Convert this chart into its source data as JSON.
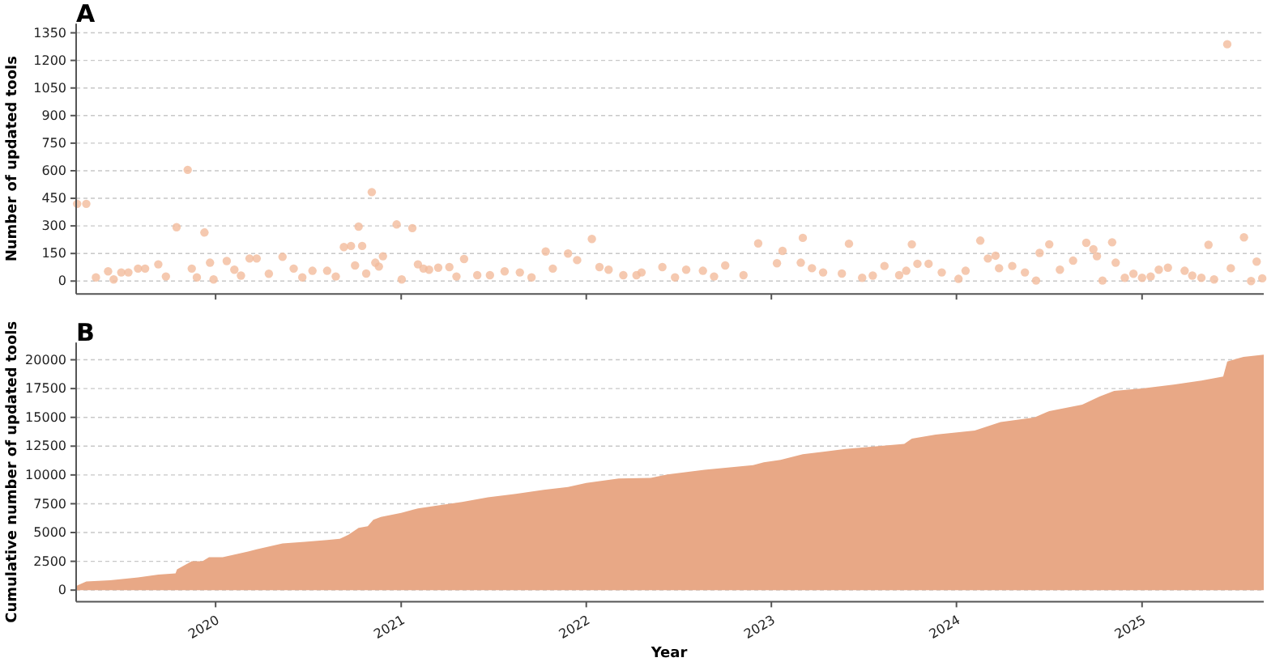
{
  "chart_data": [
    {
      "type": "scatter",
      "title": "A",
      "ylabel": "Number of updated tools",
      "color": "#f3bc9c",
      "marker": "circle",
      "grid": "y",
      "tick_labels": "y",
      "xlim": [
        "2019-04-01",
        "2025-08-29"
      ],
      "ylim": [
        -70,
        1400
      ],
      "xticks": [
        {
          "value": "2020-01-01",
          "label": null
        },
        {
          "value": "2021-01-01",
          "label": null
        },
        {
          "value": "2022-01-01",
          "label": null
        },
        {
          "value": "2023-01-01",
          "label": null
        },
        {
          "value": "2024-01-01",
          "label": null
        },
        {
          "value": "2025-01-01",
          "label": null
        }
      ],
      "yticks": [
        0,
        150,
        300,
        450,
        600,
        750,
        900,
        1050,
        1200,
        1350
      ],
      "x": [
        "2019-04-03",
        "2019-04-21",
        "2019-05-10",
        "2019-06-03",
        "2019-06-14",
        "2019-06-29",
        "2019-07-13",
        "2019-08-01",
        "2019-08-15",
        "2019-09-10",
        "2019-09-25",
        "2019-10-16",
        "2019-11-07",
        "2019-11-15",
        "2019-11-25",
        "2019-12-10",
        "2019-12-21",
        "2019-12-28",
        "2020-01-23",
        "2020-02-07",
        "2020-02-20",
        "2020-03-08",
        "2020-03-22",
        "2020-04-15",
        "2020-05-12",
        "2020-06-03",
        "2020-06-20",
        "2020-07-10",
        "2020-08-08",
        "2020-08-25",
        "2020-09-10",
        "2020-09-24",
        "2020-10-02",
        "2020-10-09",
        "2020-10-16",
        "2020-10-24",
        "2020-11-04",
        "2020-11-11",
        "2020-11-18",
        "2020-11-26",
        "2020-12-23",
        "2021-01-02",
        "2021-01-23",
        "2021-02-03",
        "2021-02-14",
        "2021-02-25",
        "2021-03-15",
        "2021-04-06",
        "2021-04-20",
        "2021-05-05",
        "2021-05-31",
        "2021-06-25",
        "2021-07-24",
        "2021-08-23",
        "2021-09-15",
        "2021-10-13",
        "2021-10-27",
        "2021-11-26",
        "2021-12-14",
        "2022-01-12",
        "2022-01-27",
        "2022-02-14",
        "2022-03-15",
        "2022-04-10",
        "2022-04-20",
        "2022-05-31",
        "2022-06-25",
        "2022-07-17",
        "2022-08-19",
        "2022-09-10",
        "2022-10-02",
        "2022-11-07",
        "2022-12-06",
        "2023-01-12",
        "2023-01-23",
        "2023-02-28",
        "2023-03-04",
        "2023-03-22",
        "2023-04-13",
        "2023-05-20",
        "2023-06-03",
        "2023-06-29",
        "2023-07-20",
        "2023-08-12",
        "2023-09-10",
        "2023-09-24",
        "2023-10-05",
        "2023-10-16",
        "2023-11-07",
        "2023-12-03",
        "2024-01-05",
        "2024-01-19",
        "2024-02-17",
        "2024-03-03",
        "2024-03-18",
        "2024-03-25",
        "2024-04-20",
        "2024-05-15",
        "2024-06-06",
        "2024-06-13",
        "2024-07-02",
        "2024-07-23",
        "2024-08-18",
        "2024-09-13",
        "2024-09-27",
        "2024-10-04",
        "2024-10-15",
        "2024-11-03",
        "2024-11-10",
        "2024-11-28",
        "2024-12-15",
        "2025-01-01",
        "2025-01-18",
        "2025-02-03",
        "2025-02-21",
        "2025-03-26",
        "2025-04-10",
        "2025-04-28",
        "2025-05-12",
        "2025-05-23",
        "2025-06-18",
        "2025-06-25",
        "2025-07-21",
        "2025-08-04",
        "2025-08-15",
        "2025-08-26"
      ],
      "values": [
        420,
        420,
        20,
        53,
        9,
        47,
        47,
        68,
        68,
        91,
        25,
        293,
        605,
        68,
        20,
        264,
        100,
        9,
        109,
        62,
        30,
        123,
        123,
        40,
        132,
        68,
        20,
        56,
        56,
        25,
        185,
        191,
        85,
        296,
        191,
        41,
        484,
        100,
        79,
        135,
        308,
        9,
        288,
        91,
        68,
        62,
        73,
        76,
        25,
        120,
        32,
        32,
        53,
        47,
        20,
        161,
        68,
        150,
        114,
        229,
        76,
        62,
        32,
        32,
        47,
        76,
        20,
        62,
        56,
        25,
        85,
        32,
        205,
        97,
        164,
        100,
        235,
        70,
        47,
        41,
        203,
        18,
        30,
        82,
        32,
        56,
        200,
        94,
        94,
        47,
        12,
        56,
        220,
        123,
        138,
        70,
        82,
        47,
        3,
        153,
        200,
        62,
        111,
        208,
        173,
        135,
        3,
        211,
        100,
        18,
        40,
        18,
        25,
        62,
        73,
        56,
        30,
        18,
        197,
        9,
        1288,
        70,
        238,
        0,
        106,
        15
      ]
    },
    {
      "type": "area",
      "title": "B",
      "xlabel": "Year",
      "ylabel": "Cumulative number of updated tools",
      "color": "#e8a886",
      "grid": "y",
      "xlim": [
        "2019-04-01",
        "2025-08-29"
      ],
      "ylim": [
        -1000,
        21500
      ],
      "xticks": [
        {
          "value": "2020-01-01",
          "label": "2020"
        },
        {
          "value": "2021-01-01",
          "label": "2021"
        },
        {
          "value": "2022-01-01",
          "label": "2022"
        },
        {
          "value": "2023-01-01",
          "label": "2023"
        },
        {
          "value": "2024-01-01",
          "label": "2024"
        },
        {
          "value": "2025-01-01",
          "label": "2025"
        }
      ],
      "yticks": [
        0,
        2500,
        5000,
        7500,
        10000,
        12500,
        15000,
        17500,
        20000
      ],
      "x": [
        "2019-04-01",
        "2019-04-03",
        "2019-04-21",
        "2019-06-07",
        "2019-08-01",
        "2019-09-10",
        "2019-10-14",
        "2019-10-17",
        "2019-11-15",
        "2019-12-06",
        "2019-12-19",
        "2020-01-15",
        "2020-03-05",
        "2020-03-22",
        "2020-05-12",
        "2020-06-25",
        "2020-08-08",
        "2020-09-02",
        "2020-09-19",
        "2020-10-09",
        "2020-10-27",
        "2020-11-07",
        "2020-11-22",
        "2021-01-01",
        "2021-02-03",
        "2021-03-07",
        "2021-05-01",
        "2021-06-21",
        "2021-08-15",
        "2021-10-09",
        "2021-11-26",
        "2022-01-01",
        "2022-03-06",
        "2022-05-08",
        "2022-06-10",
        "2022-08-22",
        "2022-11-26",
        "2022-12-17",
        "2023-01-19",
        "2023-03-04",
        "2023-05-27",
        "2023-09-20",
        "2023-10-05",
        "2023-11-21",
        "2024-02-06",
        "2024-03-28",
        "2024-06-03",
        "2024-07-02",
        "2024-09-05",
        "2024-10-09",
        "2024-11-07",
        "2025-01-01",
        "2025-03-04",
        "2025-04-28",
        "2025-06-10",
        "2025-06-18",
        "2025-07-20",
        "2025-08-29"
      ],
      "values": [
        0,
        400,
        750,
        850,
        1100,
        1350,
        1450,
        1800,
        2500,
        2500,
        2850,
        2850,
        3350,
        3550,
        4050,
        4200,
        4350,
        4450,
        4800,
        5400,
        5550,
        6100,
        6350,
        6700,
        7100,
        7300,
        7650,
        8050,
        8350,
        8700,
        8950,
        9300,
        9700,
        9750,
        10050,
        10450,
        10850,
        11100,
        11300,
        11800,
        12250,
        12700,
        13150,
        13500,
        13850,
        14600,
        15000,
        15550,
        16100,
        16800,
        17300,
        17500,
        17850,
        18200,
        18550,
        19850,
        20250,
        20450
      ]
    }
  ]
}
